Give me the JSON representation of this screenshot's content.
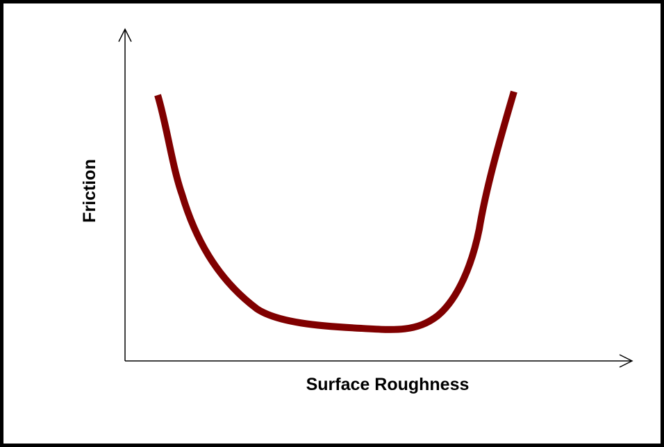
{
  "x_label": "Surface Roughness",
  "y_label": "Friction"
}
